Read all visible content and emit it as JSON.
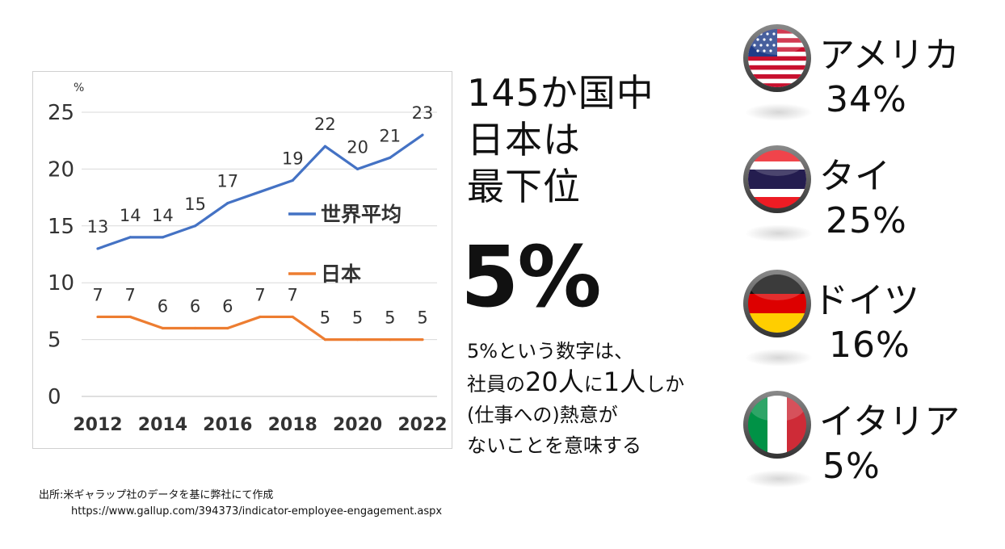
{
  "chart_data": {
    "type": "line",
    "x": [
      2012,
      2013,
      2014,
      2015,
      2016,
      2017,
      2018,
      2019,
      2020,
      2021,
      2022
    ],
    "x_ticks": [
      "2012",
      "2014",
      "2016",
      "2018",
      "2020",
      "2022"
    ],
    "y_ticks": [
      "0",
      "5",
      "10",
      "15",
      "20",
      "25"
    ],
    "ylim": [
      0,
      25
    ],
    "ylabel": "%",
    "grid": true,
    "series": [
      {
        "name": "世界平均",
        "color": "#4472C4",
        "values": [
          13,
          14,
          14,
          15,
          17,
          18,
          19,
          22,
          20,
          21,
          23
        ],
        "labels": [
          "13",
          "14",
          "14",
          "15",
          "17",
          "",
          "19",
          "22",
          "20",
          "21",
          "23"
        ]
      },
      {
        "name": "日本",
        "color": "#ED7D31",
        "values": [
          7,
          7,
          6,
          6,
          6,
          7,
          7,
          5,
          5,
          5,
          5
        ],
        "labels": [
          "7",
          "7",
          "6",
          "6",
          "6",
          "7",
          "7",
          "5",
          "5",
          "5",
          "5"
        ]
      }
    ]
  },
  "headline": {
    "line1": "145か国中",
    "line2": "日本は",
    "line3": "最下位"
  },
  "big_percent": "5%",
  "description": {
    "line1": "5%という数字は、",
    "line2_a": "社員の",
    "line2_b": "20人",
    "line2_c": "に",
    "line2_d": "1人",
    "line2_e": "しか",
    "line3": "(仕事への)熱意が",
    "line4": "ないことを意味する"
  },
  "countries": [
    {
      "name": "アメリカ",
      "percent": "34%",
      "flag": "usa-flag-icon"
    },
    {
      "name": "タイ",
      "percent": "25%",
      "flag": "thailand-flag-icon"
    },
    {
      "name": "ドイツ",
      "percent": "16%",
      "flag": "germany-flag-icon"
    },
    {
      "name": "イタリア",
      "percent": "5%",
      "flag": "italy-flag-icon"
    }
  ],
  "source": {
    "line1": "出所:米ギャラップ社のデータを基に弊社にて作成",
    "line2": "https://www.gallup.com/394373/indicator-employee-engagement.aspx"
  }
}
